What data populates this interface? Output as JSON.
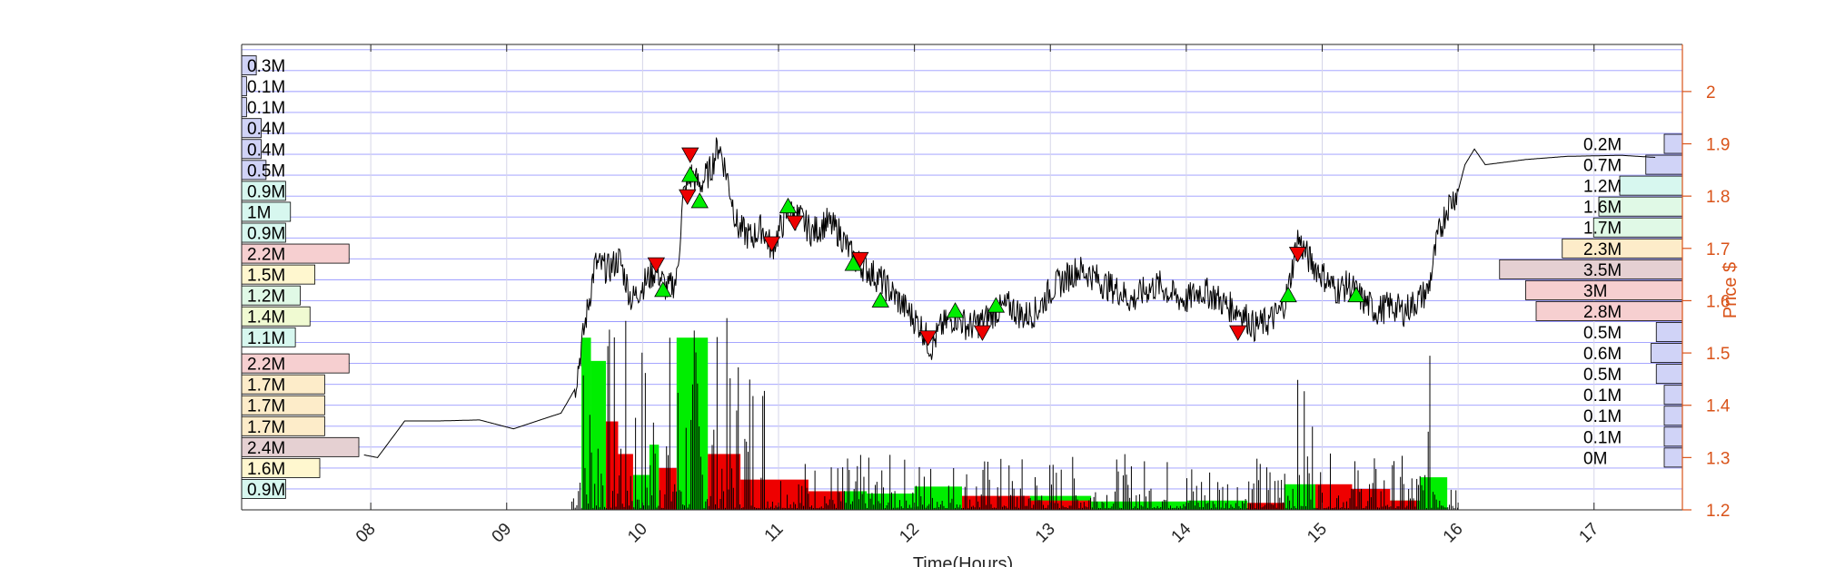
{
  "chart_data": {
    "type": "candlestick",
    "xlabel": "Time(Hours)",
    "ylabel": "Price $",
    "xlim": [
      7.05,
      17.65
    ],
    "ylim": [
      1.2,
      2.09
    ],
    "x_ticks": [
      "08",
      "09",
      "10",
      "11",
      "12",
      "13",
      "14",
      "15",
      "16",
      "17"
    ],
    "x_tick_values": [
      8,
      9,
      10,
      11,
      12,
      13,
      14,
      15,
      16,
      17
    ],
    "y_ticks": [
      "1.2",
      "1.3",
      "1.4",
      "1.5",
      "1.6",
      "1.7",
      "1.8",
      "1.9",
      "2"
    ],
    "y_tick_values": [
      1.2,
      1.3,
      1.4,
      1.5,
      1.6,
      1.7,
      1.8,
      1.9,
      2.0
    ],
    "price_path": [
      [
        7.95,
        1.305
      ],
      [
        8.05,
        1.3
      ],
      [
        8.25,
        1.37
      ],
      [
        8.5,
        1.37
      ],
      [
        8.8,
        1.372
      ],
      [
        9.05,
        1.355
      ],
      [
        9.4,
        1.385
      ],
      [
        9.5,
        1.43
      ],
      [
        9.58,
        1.56
      ],
      [
        9.65,
        1.67
      ],
      [
        9.75,
        1.66
      ],
      [
        9.83,
        1.68
      ],
      [
        9.92,
        1.6
      ],
      [
        10.0,
        1.63
      ],
      [
        10.1,
        1.66
      ],
      [
        10.18,
        1.62
      ],
      [
        10.25,
        1.64
      ],
      [
        10.3,
        1.8
      ],
      [
        10.36,
        1.84
      ],
      [
        10.42,
        1.82
      ],
      [
        10.5,
        1.85
      ],
      [
        10.56,
        1.9
      ],
      [
        10.62,
        1.84
      ],
      [
        10.7,
        1.74
      ],
      [
        10.8,
        1.72
      ],
      [
        10.88,
        1.74
      ],
      [
        10.95,
        1.7
      ],
      [
        11.0,
        1.73
      ],
      [
        11.07,
        1.77
      ],
      [
        11.15,
        1.76
      ],
      [
        11.25,
        1.73
      ],
      [
        11.35,
        1.75
      ],
      [
        11.45,
        1.73
      ],
      [
        11.55,
        1.68
      ],
      [
        11.65,
        1.66
      ],
      [
        11.75,
        1.64
      ],
      [
        11.85,
        1.61
      ],
      [
        11.95,
        1.58
      ],
      [
        12.05,
        1.55
      ],
      [
        12.12,
        1.51
      ],
      [
        12.2,
        1.55
      ],
      [
        12.3,
        1.57
      ],
      [
        12.4,
        1.55
      ],
      [
        12.5,
        1.56
      ],
      [
        12.6,
        1.58
      ],
      [
        12.7,
        1.59
      ],
      [
        12.8,
        1.57
      ],
      [
        12.9,
        1.58
      ],
      [
        13.0,
        1.62
      ],
      [
        13.1,
        1.64
      ],
      [
        13.2,
        1.66
      ],
      [
        13.3,
        1.65
      ],
      [
        13.4,
        1.63
      ],
      [
        13.5,
        1.62
      ],
      [
        13.6,
        1.6
      ],
      [
        13.7,
        1.62
      ],
      [
        13.8,
        1.63
      ],
      [
        13.9,
        1.61
      ],
      [
        14.0,
        1.6
      ],
      [
        14.1,
        1.62
      ],
      [
        14.2,
        1.61
      ],
      [
        14.3,
        1.59
      ],
      [
        14.4,
        1.58
      ],
      [
        14.5,
        1.55
      ],
      [
        14.6,
        1.56
      ],
      [
        14.7,
        1.58
      ],
      [
        14.75,
        1.62
      ],
      [
        14.82,
        1.72
      ],
      [
        14.9,
        1.68
      ],
      [
        15.0,
        1.65
      ],
      [
        15.1,
        1.62
      ],
      [
        15.2,
        1.63
      ],
      [
        15.3,
        1.6
      ],
      [
        15.4,
        1.58
      ],
      [
        15.5,
        1.59
      ],
      [
        15.6,
        1.58
      ],
      [
        15.7,
        1.6
      ],
      [
        15.78,
        1.62
      ],
      [
        15.85,
        1.72
      ],
      [
        15.92,
        1.78
      ],
      [
        16.0,
        1.81
      ],
      [
        16.05,
        1.86
      ],
      [
        16.12,
        1.89
      ],
      [
        16.2,
        1.86
      ],
      [
        16.5,
        1.87
      ],
      [
        16.8,
        1.876
      ],
      [
        17.2,
        1.878
      ],
      [
        17.45,
        1.874
      ]
    ],
    "trade_signals": {
      "buy": [
        [
          10.15,
          1.62
        ],
        [
          10.35,
          1.84
        ],
        [
          10.42,
          1.79
        ],
        [
          11.07,
          1.78
        ],
        [
          11.55,
          1.67
        ],
        [
          11.75,
          1.6
        ],
        [
          12.3,
          1.58
        ],
        [
          12.6,
          1.59
        ],
        [
          14.75,
          1.61
        ],
        [
          15.25,
          1.61
        ]
      ],
      "sell": [
        [
          10.1,
          1.67
        ],
        [
          10.35,
          1.88
        ],
        [
          10.33,
          1.8
        ],
        [
          10.95,
          1.71
        ],
        [
          11.12,
          1.75
        ],
        [
          11.6,
          1.68
        ],
        [
          12.1,
          1.53
        ],
        [
          12.5,
          1.54
        ],
        [
          14.38,
          1.54
        ],
        [
          14.82,
          1.69
        ]
      ]
    },
    "volume_bins": {
      "buy": [
        [
          9.55,
          9.62,
          0.37
        ],
        [
          9.62,
          9.73,
          0.32
        ],
        [
          9.93,
          10.05,
          0.075
        ],
        [
          10.05,
          10.12,
          0.14
        ],
        [
          10.25,
          10.48,
          0.37
        ],
        [
          11.48,
          11.65,
          0.04
        ],
        [
          11.65,
          12.0,
          0.035
        ],
        [
          12.0,
          12.35,
          0.05
        ],
        [
          12.85,
          13.3,
          0.03
        ],
        [
          13.3,
          14.0,
          0.018
        ],
        [
          14.0,
          14.45,
          0.02
        ],
        [
          14.72,
          14.95,
          0.055
        ],
        [
          15.5,
          15.8,
          0.02
        ],
        [
          15.72,
          15.92,
          0.07
        ]
      ],
      "sell": [
        [
          9.73,
          9.82,
          0.19
        ],
        [
          9.82,
          9.93,
          0.12
        ],
        [
          10.12,
          10.25,
          0.09
        ],
        [
          10.48,
          10.72,
          0.12
        ],
        [
          10.72,
          11.22,
          0.065
        ],
        [
          11.22,
          11.48,
          0.04
        ],
        [
          12.35,
          12.85,
          0.03
        ],
        [
          12.85,
          13.3,
          0.02
        ],
        [
          14.45,
          14.72,
          0.015
        ],
        [
          14.95,
          15.22,
          0.055
        ],
        [
          15.22,
          15.5,
          0.045
        ],
        [
          15.5,
          15.7,
          0.02
        ]
      ]
    },
    "volume_profile_left": [
      {
        "price": 1.24,
        "label": "0.9M",
        "value": 0.9,
        "color": "#d7f7ef"
      },
      {
        "price": 1.28,
        "label": "1.6M",
        "value": 1.6,
        "color": "#fff7cf"
      },
      {
        "price": 1.32,
        "label": "2.4M",
        "value": 2.4,
        "color": "#e5d0d2"
      },
      {
        "price": 1.36,
        "label": "1.7M",
        "value": 1.7,
        "color": "#fdecc9"
      },
      {
        "price": 1.4,
        "label": "1.7M",
        "value": 1.7,
        "color": "#fdecc9"
      },
      {
        "price": 1.44,
        "label": "1.7M",
        "value": 1.7,
        "color": "#fdecc9"
      },
      {
        "price": 1.48,
        "label": "2.2M",
        "value": 2.2,
        "color": "#f6cfd0"
      },
      {
        "price": 1.53,
        "label": "1.1M",
        "value": 1.1,
        "color": "#d7f7ef"
      },
      {
        "price": 1.57,
        "label": "1.4M",
        "value": 1.4,
        "color": "#f0fad2"
      },
      {
        "price": 1.61,
        "label": "1.2M",
        "value": 1.2,
        "color": "#e0f9e6"
      },
      {
        "price": 1.65,
        "label": "1.5M",
        "value": 1.5,
        "color": "#fff7cf"
      },
      {
        "price": 1.69,
        "label": "2.2M",
        "value": 2.2,
        "color": "#f6cfd0"
      },
      {
        "price": 1.73,
        "label": "0.9M",
        "value": 0.9,
        "color": "#d7f7ef"
      },
      {
        "price": 1.77,
        "label": "1M",
        "value": 1.0,
        "color": "#d7f7ef"
      },
      {
        "price": 1.81,
        "label": "0.9M",
        "value": 0.9,
        "color": "#d7f7ef"
      },
      {
        "price": 1.85,
        "label": "0.5M",
        "value": 0.5,
        "color": "#d0d3f7"
      },
      {
        "price": 1.89,
        "label": "0.4M",
        "value": 0.4,
        "color": "#d0d3f7"
      },
      {
        "price": 1.93,
        "label": "0.4M",
        "value": 0.4,
        "color": "#d0d3f7"
      },
      {
        "price": 1.97,
        "label": "0.1M",
        "value": 0.1,
        "color": "#d0d3f7"
      },
      {
        "price": 2.01,
        "label": "0.1M",
        "value": 0.1,
        "color": "#d0d3f7"
      },
      {
        "price": 2.05,
        "label": "0.3M",
        "value": 0.3,
        "color": "#d0d3f7"
      }
    ],
    "volume_profile_right": [
      {
        "price": 1.3,
        "label": "0M",
        "value": 0.05,
        "color": "#d0d3f7"
      },
      {
        "price": 1.34,
        "label": "0.1M",
        "value": 0.1,
        "color": "#d0d3f7"
      },
      {
        "price": 1.38,
        "label": "0.1M",
        "value": 0.1,
        "color": "#d0d3f7"
      },
      {
        "price": 1.42,
        "label": "0.1M",
        "value": 0.1,
        "color": "#d0d3f7"
      },
      {
        "price": 1.46,
        "label": "0.5M",
        "value": 0.5,
        "color": "#d0d3f7"
      },
      {
        "price": 1.5,
        "label": "0.6M",
        "value": 0.6,
        "color": "#d0d3f7"
      },
      {
        "price": 1.54,
        "label": "0.5M",
        "value": 0.5,
        "color": "#d0d3f7"
      },
      {
        "price": 1.58,
        "label": "2.8M",
        "value": 2.8,
        "color": "#f6cfd0"
      },
      {
        "price": 1.62,
        "label": "3M",
        "value": 3.0,
        "color": "#f6cfd0"
      },
      {
        "price": 1.66,
        "label": "3.5M",
        "value": 3.5,
        "color": "#e5d0d2"
      },
      {
        "price": 1.7,
        "label": "2.3M",
        "value": 2.3,
        "color": "#fdecc9"
      },
      {
        "price": 1.74,
        "label": "1.7M",
        "value": 1.7,
        "color": "#e0f9e6"
      },
      {
        "price": 1.78,
        "label": "1.6M",
        "value": 1.6,
        "color": "#e0f9e6"
      },
      {
        "price": 1.82,
        "label": "1.2M",
        "value": 1.2,
        "color": "#d7f7ef"
      },
      {
        "price": 1.86,
        "label": "0.7M",
        "value": 0.7,
        "color": "#d0d3f7"
      },
      {
        "price": 1.9,
        "label": "0.2M",
        "value": 0.2,
        "color": "#d0d3f7"
      }
    ],
    "profile_max_value": 4.0,
    "colors": {
      "axis_right": "#d95319",
      "grid": "#9999ff",
      "buy": "#00ee00",
      "sell": "#ee0000",
      "price": "#000000"
    },
    "grid": true
  }
}
